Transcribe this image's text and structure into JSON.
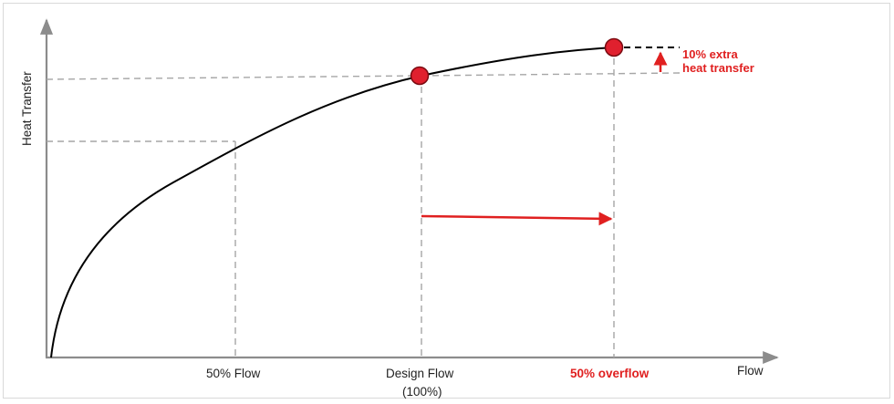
{
  "diagram": {
    "y_axis_label": "Heat Transfer",
    "x_axis_label": "Flow",
    "x_markers": [
      {
        "label": "50% Flow"
      },
      {
        "label": "Design Flow",
        "sublabel": "(100%)"
      },
      {
        "label": "50% overflow",
        "highlight": true
      }
    ],
    "annotation": {
      "line1": "10% extra",
      "line2": "heat transfer"
    },
    "colors": {
      "curve": "#000000",
      "axis": "#8c8c8c",
      "guides": "#a6a6a6",
      "accent": "#e02020"
    }
  }
}
